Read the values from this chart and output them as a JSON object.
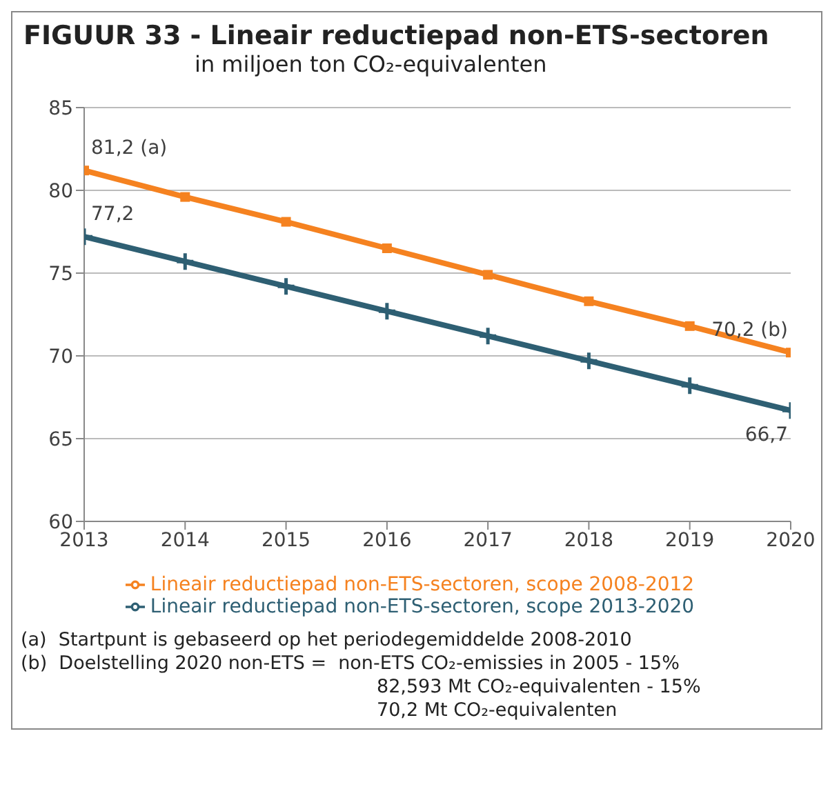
{
  "chart_data": {
    "type": "line",
    "title": "FIGUUR 33 - Lineair reductiepad non-ETS-sectoren",
    "subtitle": "in miljoen ton CO₂-equivalenten",
    "x": [
      2013,
      2014,
      2015,
      2016,
      2017,
      2018,
      2019,
      2020
    ],
    "xlim": [
      2013,
      2020
    ],
    "xticks": [
      2013,
      2014,
      2015,
      2016,
      2017,
      2018,
      2019,
      2020
    ],
    "ylim": [
      60,
      85
    ],
    "yticks": [
      60,
      65,
      70,
      75,
      80,
      85
    ],
    "grid": "y",
    "legend": "bottom",
    "series": [
      {
        "name": "Lineair reductiepad non-ETS-sectoren, scope 2008-2012",
        "color": "#f58220",
        "marker": "square",
        "values": [
          81.2,
          79.6,
          78.1,
          76.5,
          74.9,
          73.3,
          71.8,
          70.2
        ],
        "value_labels": [
          "81,2 (a)",
          null,
          null,
          null,
          null,
          null,
          null,
          "70,2 (b)"
        ]
      },
      {
        "name": "Lineair reductiepad non-ETS-sectoren, scope 2013-2020",
        "color": "#2e5f73",
        "marker": "cross",
        "values": [
          77.2,
          75.7,
          74.2,
          72.7,
          71.2,
          69.7,
          68.2,
          66.7
        ],
        "value_labels": [
          "77,2",
          null,
          null,
          null,
          null,
          null,
          null,
          "66,7"
        ]
      }
    ],
    "annotations": [
      "(a)  Startpunt is gebaseerd op het periodegemiddelde 2008-2010",
      "(b)  Doelstelling 2020 non-ETS =  non-ETS CO₂-emissies in 2005 - 15%",
      "82,593 Mt CO₂-equivalenten - 15%",
      "70,2 Mt CO₂-equivalenten"
    ]
  }
}
